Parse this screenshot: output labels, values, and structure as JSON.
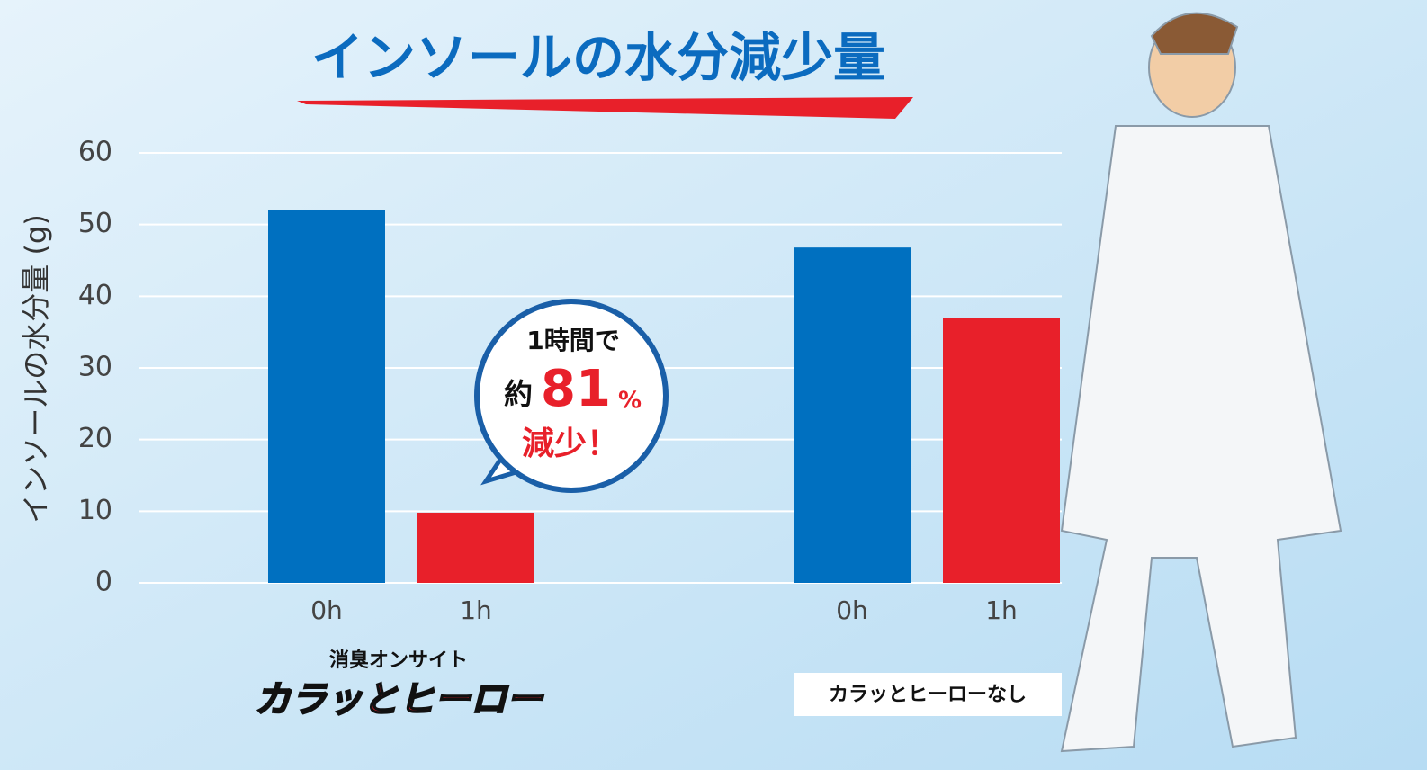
{
  "chart_data": {
    "type": "grouped_bar",
    "title": "インソールの水分減少量",
    "y_label": "インソールの水分量 (g)",
    "ylim": [
      0,
      60
    ],
    "yticks": [
      0,
      10,
      20,
      30,
      40,
      50,
      60
    ],
    "grid": true,
    "groups": [
      {
        "name_top": "消臭オンサイト",
        "name": "カラッとヒーロー",
        "categories": [
          "0h",
          "1h"
        ],
        "values": [
          52,
          9.8
        ],
        "colors": [
          "#0070c0",
          "#e8202a"
        ]
      },
      {
        "name": "カラッとヒーローなし",
        "categories": [
          "0h",
          "1h"
        ],
        "values": [
          46.8,
          37
        ],
        "colors": [
          "#0070c0",
          "#e8202a"
        ]
      }
    ],
    "callout": {
      "line1": "1時間で",
      "prefix": "約",
      "value": "81",
      "unit": "%",
      "line3": "減少！"
    }
  }
}
